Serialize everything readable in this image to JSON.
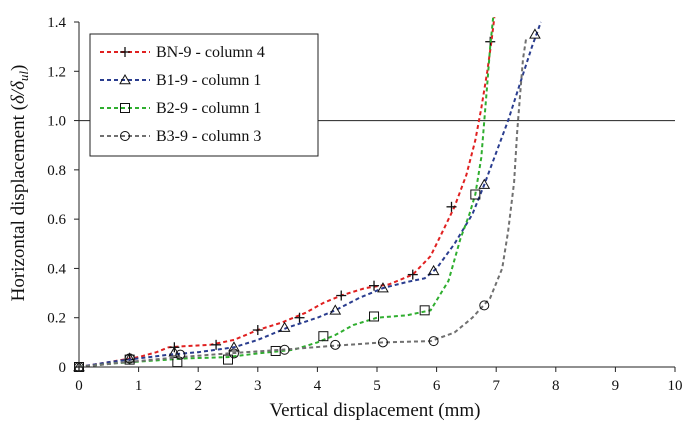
{
  "chart_data": {
    "type": "line",
    "xlabel": "Vertical displacement (mm)",
    "ylabel_main": "Horizontal displacement (",
    "ylabel_delta": "δ/δ",
    "ylabel_sub": "ul",
    "ylabel_close": ")",
    "xlim": [
      0,
      10
    ],
    "ylim": [
      0,
      1.4
    ],
    "x_ticks": [
      "0",
      "1",
      "2",
      "3",
      "4",
      "5",
      "6",
      "7",
      "8",
      "9",
      "10"
    ],
    "y_ticks": [
      "0",
      "0.2",
      "0.4",
      "0.6",
      "0.8",
      "1.0",
      "1.2",
      "1.4"
    ],
    "reference_line_y": 1.0,
    "grid": false,
    "legend_position": "top-left",
    "series": [
      {
        "name": "BN-9 - column 4",
        "color": "#e02020",
        "marker": "plus",
        "line": [
          [
            0,
            0
          ],
          [
            0.5,
            0.02
          ],
          [
            1.0,
            0.04
          ],
          [
            1.3,
            0.06
          ],
          [
            1.5,
            0.08
          ],
          [
            1.8,
            0.085
          ],
          [
            2.2,
            0.09
          ],
          [
            2.6,
            0.11
          ],
          [
            3.0,
            0.15
          ],
          [
            3.4,
            0.18
          ],
          [
            3.8,
            0.22
          ],
          [
            4.1,
            0.26
          ],
          [
            4.4,
            0.29
          ],
          [
            4.8,
            0.32
          ],
          [
            5.2,
            0.335
          ],
          [
            5.6,
            0.375
          ],
          [
            5.9,
            0.45
          ],
          [
            6.1,
            0.55
          ],
          [
            6.3,
            0.65
          ],
          [
            6.5,
            0.78
          ],
          [
            6.65,
            0.92
          ],
          [
            6.75,
            1.05
          ],
          [
            6.85,
            1.2
          ],
          [
            6.92,
            1.32
          ],
          [
            6.97,
            1.42
          ]
        ],
        "markers": [
          [
            0,
            0
          ],
          [
            0.85,
            0.03
          ],
          [
            1.6,
            0.08
          ],
          [
            2.3,
            0.09
          ],
          [
            3.0,
            0.15
          ],
          [
            3.7,
            0.2
          ],
          [
            4.4,
            0.29
          ],
          [
            4.95,
            0.33
          ],
          [
            5.6,
            0.375
          ],
          [
            6.25,
            0.65
          ],
          [
            6.9,
            1.32
          ]
        ]
      },
      {
        "name": "B1-9 - column 1",
        "color": "#2a3d8f",
        "marker": "triangle",
        "line": [
          [
            0,
            0
          ],
          [
            0.5,
            0.02
          ],
          [
            1.0,
            0.035
          ],
          [
            1.5,
            0.05
          ],
          [
            2.0,
            0.06
          ],
          [
            2.6,
            0.08
          ],
          [
            3.0,
            0.11
          ],
          [
            3.5,
            0.16
          ],
          [
            4.0,
            0.2
          ],
          [
            4.3,
            0.23
          ],
          [
            4.7,
            0.28
          ],
          [
            5.1,
            0.32
          ],
          [
            5.5,
            0.345
          ],
          [
            5.8,
            0.36
          ],
          [
            6.0,
            0.4
          ],
          [
            6.3,
            0.5
          ],
          [
            6.6,
            0.62
          ],
          [
            6.8,
            0.74
          ],
          [
            7.0,
            0.87
          ],
          [
            7.2,
            1.0
          ],
          [
            7.4,
            1.15
          ],
          [
            7.6,
            1.3
          ],
          [
            7.75,
            1.4
          ]
        ],
        "markers": [
          [
            0,
            0
          ],
          [
            0.85,
            0.035
          ],
          [
            1.6,
            0.06
          ],
          [
            2.6,
            0.08
          ],
          [
            3.45,
            0.16
          ],
          [
            4.3,
            0.23
          ],
          [
            5.1,
            0.32
          ],
          [
            5.95,
            0.39
          ],
          [
            6.8,
            0.74
          ],
          [
            7.65,
            1.35
          ]
        ]
      },
      {
        "name": "B2-9 - column 1",
        "color": "#2fae2f",
        "marker": "square",
        "line": [
          [
            0,
            0
          ],
          [
            0.6,
            0.015
          ],
          [
            1.2,
            0.025
          ],
          [
            1.8,
            0.035
          ],
          [
            2.5,
            0.04
          ],
          [
            3.0,
            0.055
          ],
          [
            3.6,
            0.07
          ],
          [
            4.0,
            0.1
          ],
          [
            4.3,
            0.13
          ],
          [
            4.6,
            0.17
          ],
          [
            5.0,
            0.2
          ],
          [
            5.5,
            0.21
          ],
          [
            5.9,
            0.23
          ],
          [
            6.2,
            0.35
          ],
          [
            6.4,
            0.52
          ],
          [
            6.55,
            0.62
          ],
          [
            6.65,
            0.7
          ],
          [
            6.75,
            0.85
          ],
          [
            6.8,
            1.0
          ],
          [
            6.85,
            1.15
          ],
          [
            6.9,
            1.3
          ],
          [
            6.95,
            1.42
          ]
        ],
        "markers": [
          [
            0,
            0
          ],
          [
            0.85,
            0.03
          ],
          [
            1.65,
            0.02
          ],
          [
            2.5,
            0.03
          ],
          [
            3.3,
            0.065
          ],
          [
            4.1,
            0.125
          ],
          [
            4.95,
            0.205
          ],
          [
            5.8,
            0.23
          ],
          [
            6.65,
            0.7
          ]
        ]
      },
      {
        "name": "B3-9 - column 3",
        "color": "#707070",
        "marker": "circle",
        "line": [
          [
            0,
            0
          ],
          [
            0.8,
            0.02
          ],
          [
            1.7,
            0.04
          ],
          [
            2.5,
            0.055
          ],
          [
            3.4,
            0.07
          ],
          [
            4.2,
            0.085
          ],
          [
            5.1,
            0.1
          ],
          [
            5.9,
            0.105
          ],
          [
            6.3,
            0.14
          ],
          [
            6.6,
            0.2
          ],
          [
            6.9,
            0.28
          ],
          [
            7.1,
            0.4
          ],
          [
            7.2,
            0.55
          ],
          [
            7.3,
            0.75
          ],
          [
            7.35,
            0.95
          ],
          [
            7.4,
            1.1
          ],
          [
            7.45,
            1.25
          ],
          [
            7.5,
            1.33
          ]
        ],
        "markers": [
          [
            0,
            0
          ],
          [
            0.85,
            0.035
          ],
          [
            1.7,
            0.05
          ],
          [
            2.6,
            0.055
          ],
          [
            3.45,
            0.07
          ],
          [
            4.3,
            0.09
          ],
          [
            5.1,
            0.1
          ],
          [
            5.95,
            0.105
          ],
          [
            6.8,
            0.25
          ]
        ]
      }
    ]
  }
}
